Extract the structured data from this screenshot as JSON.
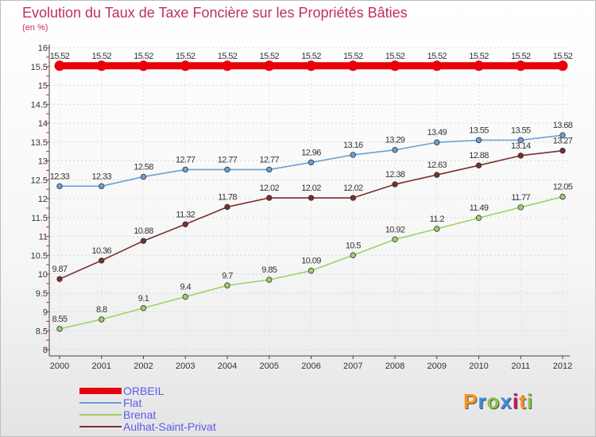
{
  "title": "Evolution du Taux de Taxe Foncière sur les Propriétés Bâties",
  "unit_label": "(en %)",
  "brand": {
    "text": "Proxiti",
    "letters": [
      "P",
      "r",
      "o",
      "x",
      "i",
      "t",
      "i"
    ],
    "letter_colors": [
      "#f7931e",
      "#3a8ed8",
      "#8bc34a",
      "#3a8ed8",
      "#c2185b",
      "#f7931e",
      "#8bc34a"
    ]
  },
  "chart_data": {
    "type": "line",
    "title": "Evolution du Taux de Taxe Foncière sur les Propriétés Bâties",
    "ylabel": "(en %)",
    "xlabel": "",
    "x": [
      "2000",
      "2001",
      "2002",
      "2003",
      "2004",
      "2005",
      "2006",
      "2007",
      "2008",
      "2009",
      "2010",
      "2011",
      "2012"
    ],
    "ylim": [
      8,
      16
    ],
    "yticks": [
      "8",
      "8.5",
      "9",
      "9.5",
      "10",
      "10.5",
      "11",
      "11.5",
      "12",
      "12.5",
      "13",
      "13.5",
      "14",
      "14.5",
      "15",
      "15.5",
      "16"
    ],
    "grid": "horizontal dotted",
    "legend_position": "bottom-left",
    "series": [
      {
        "name": "ORBEIL",
        "color": "#e8000b",
        "values": [
          15.52,
          15.52,
          15.52,
          15.52,
          15.52,
          15.52,
          15.52,
          15.52,
          15.52,
          15.52,
          15.52,
          15.52,
          15.52
        ],
        "labels": [
          "15.52",
          "15.52",
          "15.52",
          "15.52",
          "15.52",
          "15.52",
          "15.52",
          "15.52",
          "15.52",
          "15.52",
          "15.52",
          "15.52",
          "15.52"
        ]
      },
      {
        "name": "Flat",
        "color": "#6aa0d4",
        "values": [
          12.33,
          12.33,
          12.58,
          12.77,
          12.77,
          12.77,
          12.96,
          13.16,
          13.29,
          13.49,
          13.55,
          13.55,
          13.68
        ],
        "labels": [
          "12.33",
          "12.33",
          "12.58",
          "12.77",
          "12.77",
          "12.77",
          "12.96",
          "13.16",
          "13.29",
          "13.49",
          "13.55",
          "13.55",
          "13.68"
        ]
      },
      {
        "name": "Brenat",
        "color": "#9dd06a",
        "values": [
          8.55,
          8.8,
          9.1,
          9.4,
          9.7,
          9.85,
          10.09,
          10.5,
          10.92,
          11.2,
          11.49,
          11.77,
          12.05
        ],
        "labels": [
          "8.55",
          "8.8",
          "9.1",
          "9.4",
          "9.7",
          "9.85",
          "10.09",
          "10.5",
          "10.92",
          "11.2",
          "11.49",
          "11.77",
          "12.05"
        ]
      },
      {
        "name": "Aulhat-Saint-Privat",
        "color": "#7b2e2e",
        "values": [
          9.87,
          10.36,
          10.88,
          11.32,
          11.78,
          12.02,
          12.02,
          12.02,
          12.38,
          12.63,
          12.88,
          13.14,
          13.27
        ],
        "labels": [
          "9.87",
          "10.36",
          "10.88",
          "11.32",
          "11.78",
          "12.02",
          "12.02",
          "12.02",
          "12.38",
          "12.63",
          "12.88",
          "13.14",
          "13.27"
        ]
      }
    ]
  }
}
